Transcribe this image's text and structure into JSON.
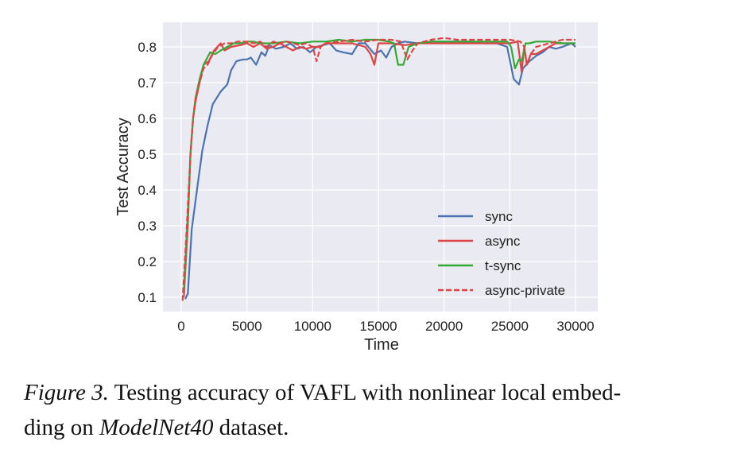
{
  "chart_data": {
    "type": "line",
    "xlabel": "Time",
    "ylabel": "Test Accuracy",
    "xlim": [
      -1400,
      31700
    ],
    "ylim": [
      0.064,
      0.87
    ],
    "xticks": [
      0,
      5000,
      10000,
      15000,
      20000,
      25000,
      30000
    ],
    "yticks": [
      0.1,
      0.2,
      0.3,
      0.4,
      0.5,
      0.6,
      0.7,
      0.8
    ],
    "grid": true,
    "legend_placement": "lower-right",
    "series": [
      {
        "name": "sync",
        "color": "#4C72B0",
        "dash": false,
        "x": [
          300,
          500,
          800,
          1200,
          1600,
          2000,
          2400,
          3000,
          3500,
          3800,
          4200,
          4700,
          5000,
          5300,
          5700,
          6100,
          6400,
          6700,
          7200,
          7800,
          8300,
          8800,
          9300,
          9800,
          10300,
          10800,
          11300,
          11800,
          12300,
          13000,
          13500,
          14000,
          14700,
          15200,
          15600,
          16000,
          16500,
          17000,
          18000,
          19000,
          20000,
          21000,
          22000,
          23000,
          24000,
          24800,
          25300,
          25700,
          26000,
          26500,
          27000,
          27500,
          28000,
          28500,
          29000,
          29700,
          30000
        ],
        "y": [
          0.095,
          0.11,
          0.29,
          0.4,
          0.51,
          0.58,
          0.64,
          0.675,
          0.695,
          0.735,
          0.76,
          0.765,
          0.765,
          0.77,
          0.75,
          0.785,
          0.775,
          0.805,
          0.795,
          0.8,
          0.81,
          0.795,
          0.8,
          0.785,
          0.8,
          0.805,
          0.81,
          0.79,
          0.785,
          0.78,
          0.81,
          0.81,
          0.78,
          0.79,
          0.77,
          0.8,
          0.81,
          0.815,
          0.81,
          0.815,
          0.815,
          0.815,
          0.815,
          0.81,
          0.81,
          0.8,
          0.71,
          0.695,
          0.74,
          0.76,
          0.775,
          0.785,
          0.8,
          0.795,
          0.8,
          0.81,
          0.8
        ]
      },
      {
        "name": "async",
        "color": "#DD4444",
        "dash": false,
        "x": [
          200,
          500,
          700,
          900,
          1100,
          1400,
          1700,
          2100,
          2500,
          3000,
          3300,
          3800,
          4500,
          5000,
          5500,
          6000,
          6500,
          7000,
          7500,
          8000,
          8500,
          9000,
          9500,
          10000,
          10500,
          11000,
          12000,
          13000,
          14000,
          14400,
          14700,
          15000,
          16000,
          17000,
          18000,
          19000,
          20000,
          21000,
          22000,
          23000,
          24000,
          25000,
          25600,
          25900,
          26100,
          26300,
          26600,
          27000,
          27500,
          28000,
          28500,
          29000,
          30000
        ],
        "y": [
          0.1,
          0.3,
          0.5,
          0.6,
          0.65,
          0.7,
          0.75,
          0.76,
          0.79,
          0.81,
          0.79,
          0.8,
          0.805,
          0.81,
          0.8,
          0.81,
          0.795,
          0.8,
          0.81,
          0.8,
          0.79,
          0.8,
          0.795,
          0.8,
          0.8,
          0.81,
          0.81,
          0.81,
          0.8,
          0.78,
          0.75,
          0.81,
          0.81,
          0.805,
          0.81,
          0.81,
          0.81,
          0.81,
          0.81,
          0.81,
          0.81,
          0.81,
          0.815,
          0.73,
          0.8,
          0.75,
          0.78,
          0.78,
          0.79,
          0.8,
          0.81,
          0.81,
          0.81
        ]
      },
      {
        "name": "t-sync",
        "color": "#33AA33",
        "dash": false,
        "x": [
          200,
          500,
          700,
          900,
          1100,
          1400,
          1700,
          2200,
          2600,
          3000,
          3500,
          4000,
          4500,
          5000,
          5500,
          6000,
          7000,
          8000,
          9000,
          10000,
          11000,
          12000,
          13000,
          14000,
          15000,
          15800,
          16200,
          16500,
          16900,
          17300,
          18000,
          19000,
          20000,
          21000,
          22000,
          23000,
          24000,
          24800,
          25100,
          25400,
          25700,
          25900,
          26200,
          26500,
          27000,
          28000,
          29000,
          30000
        ],
        "y": [
          0.12,
          0.33,
          0.5,
          0.6,
          0.66,
          0.71,
          0.75,
          0.785,
          0.78,
          0.79,
          0.8,
          0.81,
          0.81,
          0.815,
          0.815,
          0.81,
          0.81,
          0.815,
          0.81,
          0.815,
          0.815,
          0.82,
          0.815,
          0.82,
          0.82,
          0.815,
          0.81,
          0.75,
          0.75,
          0.8,
          0.81,
          0.815,
          0.815,
          0.815,
          0.815,
          0.815,
          0.815,
          0.815,
          0.8,
          0.74,
          0.765,
          0.76,
          0.81,
          0.81,
          0.815,
          0.815,
          0.81,
          0.81
        ]
      },
      {
        "name": "async-private",
        "color": "#DD4444",
        "dash": true,
        "x": [
          100,
          400,
          700,
          900,
          1100,
          1400,
          1700,
          2000,
          2400,
          2800,
          3300,
          3800,
          4300,
          5000,
          5500,
          6000,
          6500,
          7000,
          7500,
          8000,
          8500,
          9000,
          9500,
          10000,
          10300,
          10600,
          11000,
          12000,
          13000,
          14000,
          15000,
          16000,
          16700,
          17200,
          17600,
          18000,
          19000,
          20000,
          21000,
          22000,
          23000,
          24000,
          25000,
          25800,
          26100,
          26300,
          26600,
          27000,
          28000,
          29000,
          30000
        ],
        "y": [
          0.09,
          0.28,
          0.5,
          0.6,
          0.66,
          0.7,
          0.74,
          0.75,
          0.78,
          0.8,
          0.81,
          0.81,
          0.815,
          0.815,
          0.81,
          0.815,
          0.8,
          0.815,
          0.81,
          0.815,
          0.81,
          0.805,
          0.81,
          0.8,
          0.76,
          0.8,
          0.81,
          0.815,
          0.82,
          0.815,
          0.82,
          0.82,
          0.815,
          0.765,
          0.79,
          0.81,
          0.82,
          0.825,
          0.82,
          0.82,
          0.82,
          0.82,
          0.82,
          0.815,
          0.8,
          0.75,
          0.78,
          0.8,
          0.81,
          0.82,
          0.82
        ]
      }
    ]
  },
  "caption": {
    "label": "Figure 3.",
    "text": " Testing accuracy of VAFL with nonlinear local embed-",
    "line2_a": "ding on ",
    "line2_italic": "ModelNet40",
    "line2_b": " dataset."
  }
}
